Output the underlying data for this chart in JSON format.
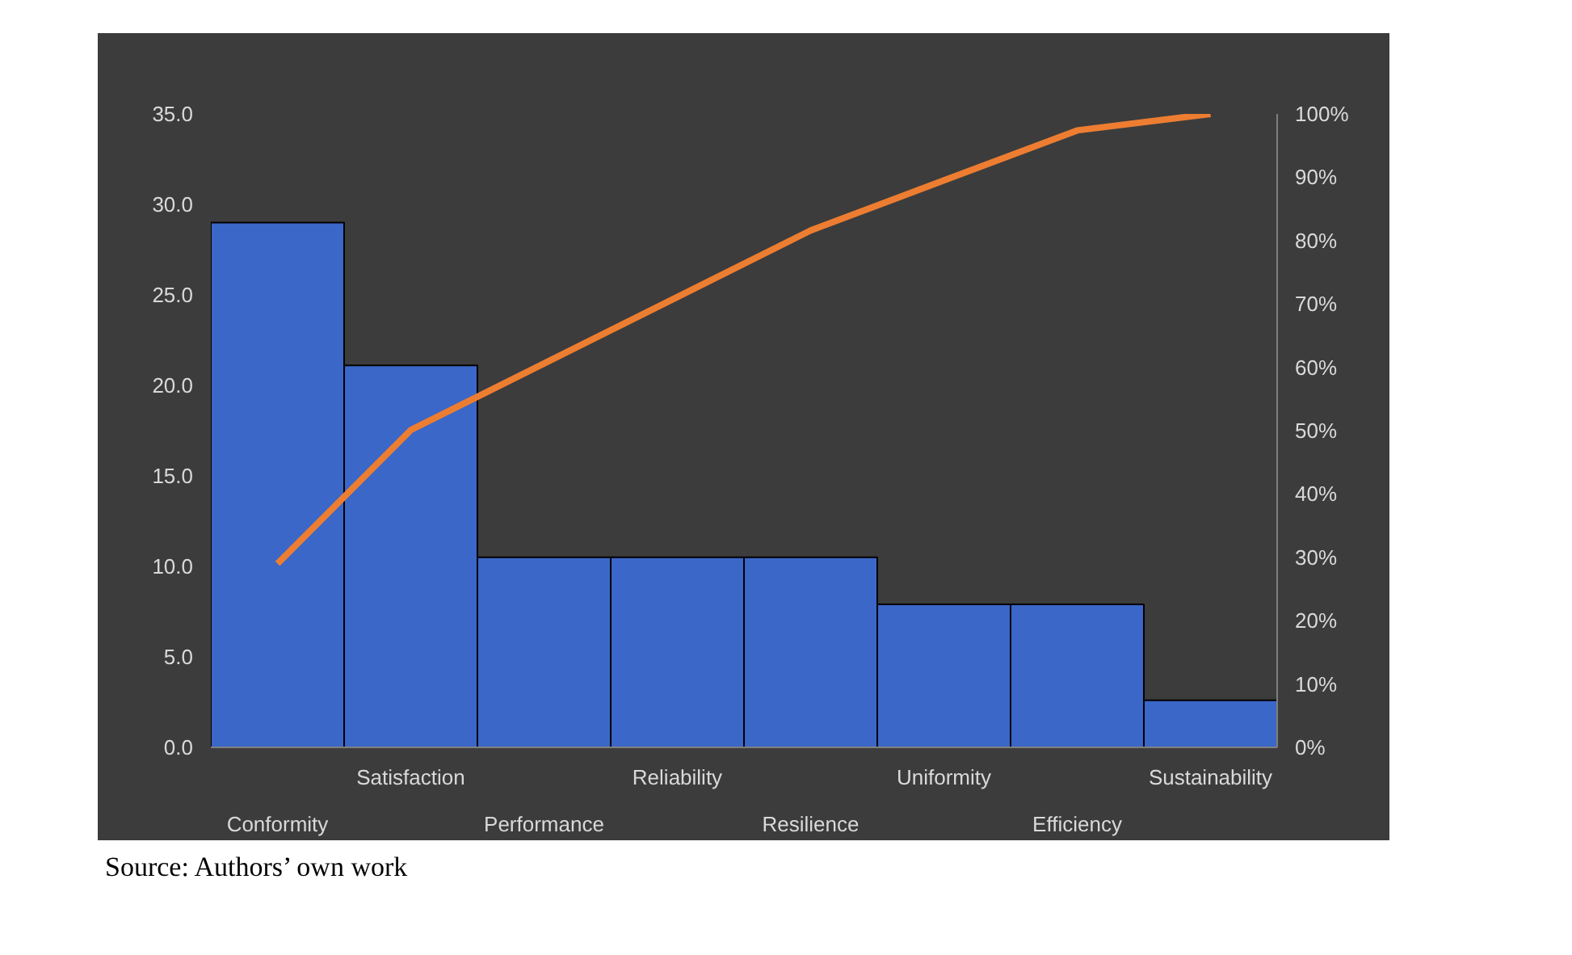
{
  "chart_data": {
    "type": "bar",
    "categories": [
      "Conformity",
      "Satisfaction",
      "Performance",
      "Reliability",
      "Resilience",
      "Uniformity",
      "Efficiency",
      "Sustainability"
    ],
    "series": [
      {
        "color": "#3a67c8",
        "values": [
          29.0,
          21.1,
          10.5,
          10.5,
          10.5,
          7.9,
          7.9,
          2.6
        ]
      },
      {
        "type": "line",
        "color": "#ed7d31",
        "axis": "y2",
        "values": [
          29.0,
          50.1,
          60.6,
          71.1,
          81.6,
          89.5,
          97.4,
          100.0
        ]
      }
    ],
    "ylim": [
      0,
      35
    ],
    "yticks": [
      {
        "value": 0,
        "label": "0.0"
      },
      {
        "value": 5,
        "label": "5.0"
      },
      {
        "value": 10,
        "label": "10.0"
      },
      {
        "value": 15,
        "label": "15.0"
      },
      {
        "value": 20,
        "label": "20.0"
      },
      {
        "value": 25,
        "label": "25.0"
      },
      {
        "value": 30,
        "label": "30.0"
      },
      {
        "value": 35,
        "label": "35.0"
      }
    ],
    "y2lim": [
      0,
      100
    ],
    "y2ticks": [
      {
        "value": 0,
        "label": "0%"
      },
      {
        "value": 10,
        "label": "10%"
      },
      {
        "value": 20,
        "label": "20%"
      },
      {
        "value": 30,
        "label": "30%"
      },
      {
        "value": 40,
        "label": "40%"
      },
      {
        "value": 50,
        "label": "50%"
      },
      {
        "value": 60,
        "label": "60%"
      },
      {
        "value": 70,
        "label": "70%"
      },
      {
        "value": 80,
        "label": "80%"
      },
      {
        "value": 90,
        "label": "90%"
      },
      {
        "value": 100,
        "label": "100%"
      }
    ],
    "annotations": [
      "Source: Authors’ own work"
    ]
  }
}
